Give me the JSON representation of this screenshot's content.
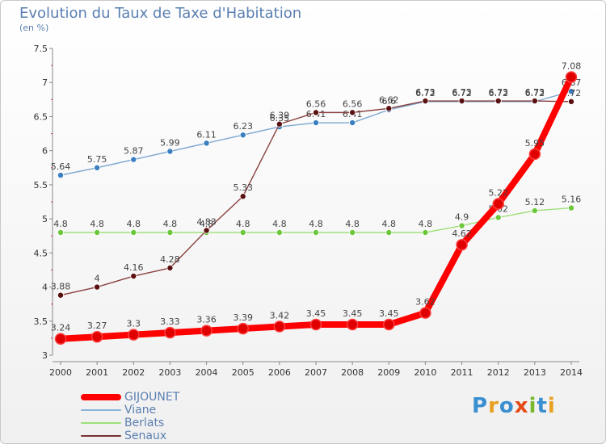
{
  "title": "Evolution du Taux de Taxe d'Habitation",
  "subtitle": "(en %)",
  "logo": {
    "text": "Proxiti",
    "letter_colors": [
      "#3a8fd0",
      "#e8a020",
      "#3a8fd0",
      "#e64a19",
      "#78b82a",
      "#3a8fd0",
      "#e8a020"
    ]
  },
  "legend": [
    {
      "label": "GIJOUNET",
      "color": "#ff0000"
    },
    {
      "label": "Viane",
      "color": "#8ab4d8"
    },
    {
      "label": "Berlats",
      "color": "#9fe07a"
    },
    {
      "label": "Senaux",
      "color": "#7a3030"
    }
  ],
  "chart_data": {
    "type": "line",
    "title": "Evolution du Taux de Taxe d'Habitation",
    "ylabel": "(en %)",
    "xlabel": "",
    "ylim": [
      3,
      7.5
    ],
    "yticks": [
      "3",
      "3.5",
      "4",
      "4.5",
      "5",
      "5.5",
      "6",
      "6.5",
      "7",
      "7.5"
    ],
    "x": [
      "2000",
      "2001",
      "2002",
      "2003",
      "2004",
      "2005",
      "2006",
      "2007",
      "2008",
      "2009",
      "2010",
      "2011",
      "2012",
      "2013",
      "2014"
    ],
    "grid": false,
    "series": [
      {
        "name": "Viane",
        "color": "#7ba7d0",
        "marker": "#3a7fc0",
        "values": [
          5.64,
          5.75,
          5.87,
          5.99,
          6.11,
          6.23,
          6.35,
          6.41,
          6.41,
          6.6,
          6.72,
          6.72,
          6.72,
          6.72,
          6.87
        ],
        "labels": [
          "5.64",
          "5.75",
          "5.87",
          "5.99",
          "6.11",
          "6.23",
          "6.35",
          "6.41",
          "6.41",
          "6.6",
          "6.72",
          "6.72",
          "6.72",
          "6.72",
          "6.87"
        ]
      },
      {
        "name": "Berlats",
        "color": "#9fe07a",
        "marker": "#6cc83a",
        "values": [
          4.8,
          4.8,
          4.8,
          4.8,
          4.8,
          4.8,
          4.8,
          4.8,
          4.8,
          4.8,
          4.8,
          4.9,
          5.02,
          5.12,
          5.16
        ],
        "labels": [
          "4.8",
          "4.8",
          "4.8",
          "4.8",
          "4.8",
          "4.8",
          "4.8",
          "4.8",
          "4.8",
          "4.8",
          "4.8",
          "4.9",
          "5.02",
          "5.12",
          "5.16"
        ]
      },
      {
        "name": "Senaux",
        "color": "#8a4040",
        "marker": "#5a1010",
        "values": [
          3.88,
          4.0,
          4.16,
          4.28,
          4.83,
          5.33,
          6.39,
          6.56,
          6.56,
          6.62,
          6.73,
          6.73,
          6.73,
          6.73,
          6.72
        ],
        "labels": [
          "3.88",
          "4",
          "4.16",
          "4.28",
          "4.83",
          "5.33",
          "6.39",
          "6.56",
          "6.56",
          "6.62",
          "6.73",
          "6.73",
          "6.73",
          "6.73",
          "6.72"
        ]
      },
      {
        "name": "GIJOUNET",
        "color": "#ff0000",
        "marker": "#e00000",
        "values": [
          3.24,
          3.27,
          3.3,
          3.33,
          3.36,
          3.39,
          3.42,
          3.45,
          3.45,
          3.45,
          3.62,
          4.62,
          5.22,
          5.95,
          7.08
        ],
        "labels": [
          "3.24",
          "3.27",
          "3.3",
          "3.33",
          "3.36",
          "3.39",
          "3.42",
          "3.45",
          "3.45",
          "3.45",
          "3.62",
          "4.62",
          "5.22",
          "5.95",
          "7.08"
        ]
      }
    ]
  }
}
